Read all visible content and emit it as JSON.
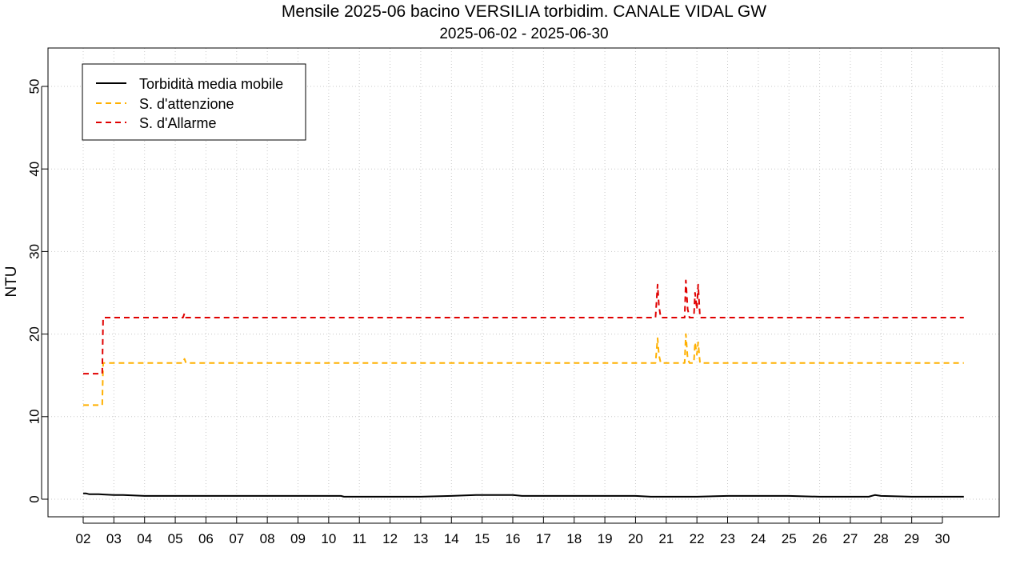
{
  "chart_data": {
    "type": "line",
    "title": "Mensile 2025-06 bacino VERSILIA torbidim. CANALE VIDAL GW",
    "subtitle": "2025-06-02 - 2025-06-30",
    "xlabel": "",
    "ylabel": "NTU",
    "xlim": [
      2,
      30.9
    ],
    "ylim": [
      -2,
      55
    ],
    "x_ticks": [
      "02",
      "03",
      "04",
      "05",
      "06",
      "07",
      "08",
      "09",
      "10",
      "11",
      "12",
      "13",
      "14",
      "15",
      "16",
      "17",
      "18",
      "19",
      "20",
      "21",
      "22",
      "23",
      "24",
      "25",
      "26",
      "27",
      "28",
      "29",
      "30"
    ],
    "y_ticks": [
      0,
      10,
      20,
      30,
      40,
      50
    ],
    "grid": true,
    "legend_position": "top-left",
    "series": [
      {
        "name": "Torbidità media mobile",
        "color": "#000000",
        "dash": "solid",
        "points": [
          [
            2.0,
            0.7
          ],
          [
            2.1,
            0.7
          ],
          [
            2.2,
            0.6
          ],
          [
            2.5,
            0.6
          ],
          [
            3.0,
            0.5
          ],
          [
            3.3,
            0.5
          ],
          [
            4.0,
            0.4
          ],
          [
            6.0,
            0.4
          ],
          [
            8.0,
            0.4
          ],
          [
            10.4,
            0.4
          ],
          [
            10.5,
            0.3
          ],
          [
            12.0,
            0.3
          ],
          [
            13.0,
            0.3
          ],
          [
            14.0,
            0.4
          ],
          [
            14.8,
            0.5
          ],
          [
            15.0,
            0.5
          ],
          [
            16.0,
            0.5
          ],
          [
            16.3,
            0.4
          ],
          [
            18.0,
            0.4
          ],
          [
            20.0,
            0.4
          ],
          [
            20.5,
            0.3
          ],
          [
            22.0,
            0.3
          ],
          [
            23.0,
            0.4
          ],
          [
            25.0,
            0.4
          ],
          [
            26.0,
            0.3
          ],
          [
            27.6,
            0.3
          ],
          [
            27.8,
            0.5
          ],
          [
            28.0,
            0.4
          ],
          [
            29.0,
            0.3
          ],
          [
            30.7,
            0.3
          ]
        ]
      },
      {
        "name": "S. d'attenzione",
        "color": "#ffb000",
        "dash": "dashed",
        "points": [
          [
            2.0,
            11.4
          ],
          [
            2.62,
            11.4
          ],
          [
            2.65,
            16.5
          ],
          [
            5.25,
            16.5
          ],
          [
            5.3,
            17.0
          ],
          [
            5.35,
            16.5
          ],
          [
            20.65,
            16.5
          ],
          [
            20.72,
            19.5
          ],
          [
            20.76,
            17.5
          ],
          [
            20.82,
            16.5
          ],
          [
            21.6,
            16.5
          ],
          [
            21.64,
            20.0
          ],
          [
            21.7,
            17.0
          ],
          [
            21.76,
            16.5
          ],
          [
            21.9,
            16.5
          ],
          [
            21.94,
            19.0
          ],
          [
            22.0,
            17.5
          ],
          [
            22.04,
            19.0
          ],
          [
            22.1,
            16.5
          ],
          [
            30.7,
            16.5
          ]
        ]
      },
      {
        "name": "S. d'Allarme",
        "color": "#e00000",
        "dash": "dashed",
        "points": [
          [
            2.0,
            15.2
          ],
          [
            2.62,
            15.2
          ],
          [
            2.65,
            22.0
          ],
          [
            5.25,
            22.0
          ],
          [
            5.3,
            22.5
          ],
          [
            5.35,
            22.0
          ],
          [
            20.65,
            22.0
          ],
          [
            20.72,
            26.0
          ],
          [
            20.76,
            23.5
          ],
          [
            20.82,
            22.0
          ],
          [
            21.6,
            22.0
          ],
          [
            21.64,
            26.5
          ],
          [
            21.7,
            23.0
          ],
          [
            21.76,
            22.0
          ],
          [
            21.9,
            22.0
          ],
          [
            21.94,
            25.0
          ],
          [
            22.0,
            23.0
          ],
          [
            22.04,
            26.0
          ],
          [
            22.1,
            22.0
          ],
          [
            30.7,
            22.0
          ]
        ]
      }
    ]
  }
}
